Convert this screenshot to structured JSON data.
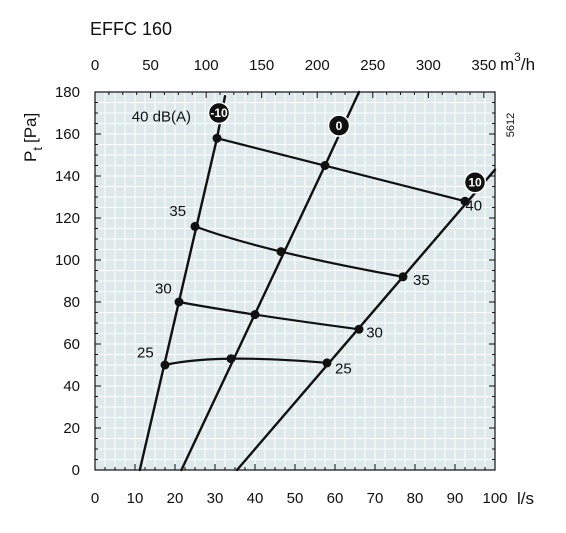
{
  "colors": {
    "plot_background": "#dde9ea",
    "grid": "#ffffff",
    "curve": "#111111",
    "badge_fill": "#111111",
    "badge_text": "#ffffff"
  },
  "chart_data": {
    "type": "line",
    "title": "EFFC 160",
    "ylabel_main": "P",
    "ylabel_sub": "t",
    "ylabel_unit": "[Pa]",
    "xlabel_bottom": "l/s",
    "xlabel_top": "m",
    "xlabel_top_power": "3",
    "xlabel_top_tail": "/h",
    "side_label": "5612",
    "xlim": [
      0,
      100
    ],
    "ylim": [
      0,
      180
    ],
    "xticks": [
      "0",
      "10",
      "20",
      "30",
      "40",
      "50",
      "60",
      "70",
      "80",
      "90",
      "100"
    ],
    "yticks": [
      "0",
      "20",
      "40",
      "60",
      "80",
      "100",
      "120",
      "140",
      "160",
      "180"
    ],
    "xticks_top": [
      "0",
      "50",
      "100",
      "150",
      "200",
      "250",
      "300",
      "350"
    ],
    "top_axis_factor": 3.6,
    "grid": true,
    "damper_curves": [
      {
        "name": "-10",
        "points": [
          [
            11.2,
            0
          ],
          [
            30.5,
            158
          ],
          [
            32.5,
            178
          ]
        ]
      },
      {
        "name": "0",
        "points": [
          [
            21.6,
            0
          ],
          [
            57.5,
            145
          ],
          [
            66,
            180
          ]
        ]
      },
      {
        "name": "10",
        "points": [
          [
            35.5,
            0
          ],
          [
            100,
            143
          ]
        ]
      }
    ],
    "sound_curves": [
      {
        "name": "25",
        "label": "25",
        "points": [
          [
            17.5,
            50
          ],
          [
            34,
            53
          ],
          [
            58,
            51
          ]
        ]
      },
      {
        "name": "30",
        "label": "30",
        "points": [
          [
            21,
            80
          ],
          [
            40,
            74
          ],
          [
            66,
            67
          ]
        ]
      },
      {
        "name": "35",
        "label": "35",
        "points": [
          [
            25,
            116
          ],
          [
            46.5,
            104
          ],
          [
            77,
            92
          ]
        ]
      },
      {
        "name": "40",
        "label": "40 dB(A)",
        "points": [
          [
            30.5,
            158
          ],
          [
            57.5,
            145
          ],
          [
            92.5,
            128
          ]
        ]
      }
    ],
    "badges": [
      {
        "text": "-10",
        "x": 31,
        "y": 170
      },
      {
        "text": "0",
        "x": 61,
        "y": 164
      },
      {
        "text": "10",
        "x": 95,
        "y": 137
      }
    ],
    "sound_labels": [
      {
        "text": "40 dB(A)",
        "x": 9.2,
        "y": 166
      },
      {
        "text": "35",
        "x": 18.6,
        "y": 121
      },
      {
        "text": "30",
        "x": 15,
        "y": 84
      },
      {
        "text": "25",
        "x": 10.5,
        "y": 53.5
      },
      {
        "text": "40",
        "x": 92.6,
        "y": 123.5
      },
      {
        "text": "35",
        "x": 79.5,
        "y": 88
      },
      {
        "text": "30",
        "x": 67.8,
        "y": 63
      },
      {
        "text": "25",
        "x": 60,
        "y": 46
      }
    ]
  }
}
